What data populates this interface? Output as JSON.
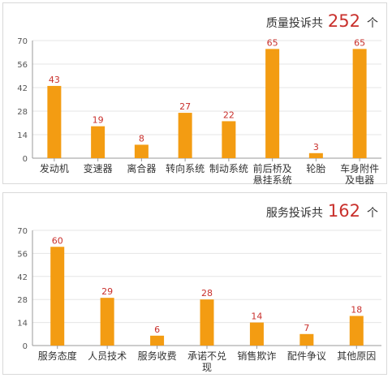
{
  "quality_panel": {
    "label": "质量投诉共",
    "count": "252",
    "unit": "个"
  },
  "service_panel": {
    "label": "服务投诉共",
    "count": "162",
    "unit": "个"
  },
  "colors": {
    "bar": "#f39c12",
    "value_label": "#c9302c",
    "axis": "#999999",
    "grid": "#e5e5e5"
  },
  "chart_data": [
    {
      "type": "bar",
      "title": "质量投诉共 252 个",
      "categories": [
        "发动机",
        "变速器",
        "离合器",
        "转向系统",
        "制动系统",
        "前后桥及悬挂系统",
        "轮胎",
        "车身附件及电器"
      ],
      "category_lines": [
        [
          "发动机"
        ],
        [
          "变速器"
        ],
        [
          "离合器"
        ],
        [
          "转向系统"
        ],
        [
          "制动系统"
        ],
        [
          "前后桥及",
          "悬挂系统"
        ],
        [
          "轮胎"
        ],
        [
          "车身附件",
          "及电器"
        ]
      ],
      "values": [
        43,
        19,
        8,
        27,
        22,
        65,
        3,
        65
      ],
      "yticks": [
        0,
        14,
        28,
        42,
        56,
        70
      ],
      "ylim": [
        0,
        70
      ],
      "grid": true,
      "xlabel": "",
      "ylabel": ""
    },
    {
      "type": "bar",
      "title": "服务投诉共 162 个",
      "categories": [
        "服务态度",
        "人员技术",
        "服务收费",
        "承诺不兑现",
        "销售欺诈",
        "配件争议",
        "其他原因"
      ],
      "category_lines": [
        [
          "服务态度"
        ],
        [
          "人员技术"
        ],
        [
          "服务收费"
        ],
        [
          "承诺不兑",
          "现"
        ],
        [
          "销售欺诈"
        ],
        [
          "配件争议"
        ],
        [
          "其他原因"
        ]
      ],
      "values": [
        60,
        29,
        6,
        28,
        14,
        7,
        18
      ],
      "yticks": [
        0,
        14,
        28,
        42,
        56,
        70
      ],
      "ylim": [
        0,
        70
      ],
      "grid": true,
      "xlabel": "",
      "ylabel": ""
    }
  ]
}
